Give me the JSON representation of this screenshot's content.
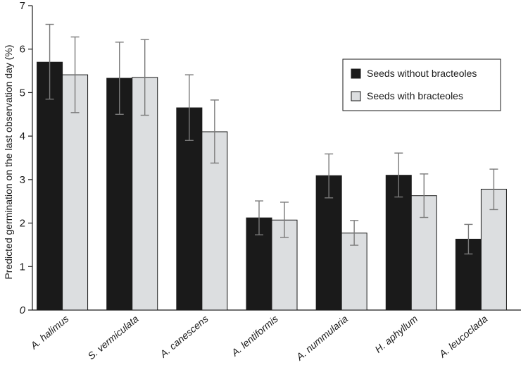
{
  "chart_data": {
    "type": "bar",
    "ylabel": "Predicted germination on the last observation day (%)",
    "ylim": [
      0,
      7
    ],
    "yticks": [
      "0",
      "1",
      "2",
      "3",
      "4",
      "5",
      "6",
      "7"
    ],
    "categories": [
      "A. halimus",
      "S. vermiculata",
      "A. canescens",
      "A. lentiformis",
      "A. nummularia",
      "H. aphyllum",
      "A. leucoclada"
    ],
    "series": [
      {
        "name": "Seeds without bracteoles",
        "color": "#1a1a1a",
        "values": [
          5.7,
          5.33,
          4.65,
          2.12,
          3.09,
          3.1,
          1.63
        ],
        "err_low": [
          4.85,
          4.5,
          3.9,
          1.73,
          2.58,
          2.6,
          1.29
        ],
        "err_high": [
          6.57,
          6.16,
          5.41,
          2.51,
          3.59,
          3.61,
          1.97
        ]
      },
      {
        "name": "Seeds with bracteoles",
        "color": "#dcdee0",
        "values": [
          5.41,
          5.35,
          4.1,
          2.07,
          1.77,
          2.63,
          2.78
        ],
        "err_low": [
          4.54,
          4.48,
          3.38,
          1.67,
          1.49,
          2.13,
          2.31
        ],
        "err_high": [
          6.28,
          6.22,
          4.83,
          2.48,
          2.06,
          3.13,
          3.24
        ]
      }
    ],
    "legend_position": "top-right",
    "grid": false
  }
}
